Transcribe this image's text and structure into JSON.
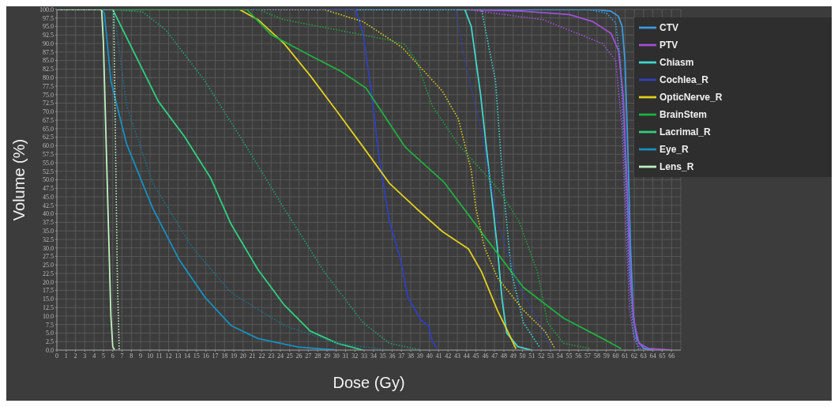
{
  "chart_data": {
    "type": "line",
    "xlabel": "Dose (Gy)",
    "ylabel": "Volume (%)",
    "xlim": [
      0,
      67
    ],
    "ylim": [
      0,
      100
    ],
    "xticks": [
      0,
      1,
      2,
      3,
      4,
      5,
      6,
      7,
      8,
      9,
      10,
      11,
      12,
      13,
      14,
      15,
      16,
      17,
      18,
      19,
      20,
      21,
      22,
      23,
      24,
      25,
      26,
      27,
      28,
      29,
      30,
      31,
      32,
      33,
      34,
      35,
      36,
      37,
      38,
      39,
      40,
      41,
      42,
      43,
      44,
      45,
      46,
      47,
      48,
      49,
      50,
      51,
      52,
      53,
      54,
      55,
      56,
      57,
      58,
      59,
      60,
      61,
      62,
      63,
      64,
      65,
      66
    ],
    "yticks": [
      {
        "value": 0,
        "label": "0.0"
      },
      2.5,
      {
        "value": 5,
        "label": "5.0"
      },
      7.5,
      {
        "value": 10,
        "label": "10.0"
      },
      12.5,
      {
        "value": 15,
        "label": "15.0"
      },
      17.5,
      {
        "value": 20,
        "label": "20.0"
      },
      22.5,
      {
        "value": 25,
        "label": "25.0"
      },
      27.5,
      {
        "value": 30,
        "label": "30.0"
      },
      32.5,
      {
        "value": 35,
        "label": "35.0"
      },
      37.5,
      {
        "value": 40,
        "label": "40.0"
      },
      42.5,
      {
        "value": 45,
        "label": "45.0"
      },
      47.5,
      {
        "value": 50,
        "label": "50.0"
      },
      52.5,
      {
        "value": 55,
        "label": "55.0"
      },
      57.5,
      {
        "value": 60,
        "label": "60.0"
      },
      62.5,
      {
        "value": 65,
        "label": "65.0"
      },
      67.5,
      {
        "value": 70,
        "label": "70.0"
      },
      72.5,
      {
        "value": 75,
        "label": "75.0"
      },
      77.5,
      {
        "value": 80,
        "label": "80.0"
      },
      82.5,
      {
        "value": 85,
        "label": "85.0"
      },
      87.5,
      {
        "value": 90,
        "label": "90.0"
      },
      92.5,
      {
        "value": 95,
        "label": "95.0"
      },
      97.5,
      {
        "value": 100,
        "label": "100.0"
      }
    ],
    "grid": true,
    "legend": "top right",
    "marker": "none",
    "series": [
      {
        "name": "CTV",
        "color": "#3b9be0",
        "x": [
          0,
          58,
          59.5,
          60.3,
          60.7,
          61,
          61.3,
          61.6,
          61.9,
          62.3,
          63,
          64
        ],
        "values": [
          100,
          100,
          99.5,
          98,
          95,
          85,
          60,
          30,
          10,
          3,
          0.5,
          0
        ]
      },
      {
        "name": "PTV",
        "color": "#a050d8",
        "x": [
          0,
          44,
          50,
          55,
          57.5,
          59.5,
          60.3,
          60.8,
          61.2,
          61.6,
          62,
          62.5,
          63.5,
          66
        ],
        "values": [
          100,
          100,
          99.5,
          98.5,
          96.5,
          93,
          88,
          75,
          50,
          20,
          8,
          2,
          0.5,
          0
        ]
      },
      {
        "name": "Chiasm",
        "color": "#40d8d0",
        "x": [
          0,
          43.8,
          44.5,
          45.5,
          46.5,
          47.3,
          47.8,
          48.3,
          49.5,
          51
        ],
        "values": [
          100,
          100,
          95,
          75,
          50,
          30,
          15,
          5,
          1,
          0
        ]
      },
      {
        "name": "Cochlea_R",
        "color": "#3040c0",
        "x": [
          0,
          32.1,
          32.9,
          33.8,
          34.6,
          35.7,
          36.9,
          37.7,
          39.1,
          39.9,
          40.3,
          40.8
        ],
        "values": [
          100,
          100,
          92.6,
          75,
          56.6,
          38,
          26.7,
          15.5,
          8.8,
          7.2,
          2.7,
          0.5
        ]
      },
      {
        "name": "OpticNerve_R",
        "color": "#e0d020",
        "x": [
          0,
          19.6,
          21.6,
          24.4,
          27.2,
          30.1,
          32.9,
          35.7,
          38.6,
          41.4,
          44.2,
          45.6,
          47.3,
          48.4,
          49.3
        ],
        "values": [
          100,
          100,
          97,
          90,
          80.6,
          70,
          59.6,
          49,
          41.6,
          34.8,
          29.7,
          23,
          11.7,
          5.6,
          0.4
        ]
      },
      {
        "name": "BrainStem",
        "color": "#20b040",
        "x": [
          0,
          20.4,
          23,
          27.2,
          30.4,
          33.2,
          37.4,
          41.6,
          45.9,
          50.1,
          54.4,
          58.6,
          60.6
        ],
        "values": [
          100,
          100,
          92.6,
          86.5,
          82,
          76.9,
          59.6,
          49.2,
          33.5,
          18.4,
          9.4,
          3.4,
          0.4
        ]
      },
      {
        "name": "Lacrimal_R",
        "color": "#30d080",
        "x": [
          0,
          6,
          8.9,
          10.9,
          13.7,
          16.5,
          18.7,
          21.6,
          24.4,
          27.2,
          30.1,
          32.9
        ],
        "values": [
          100,
          100,
          84,
          73,
          62.7,
          50.6,
          37,
          23.6,
          13.3,
          5.6,
          2,
          0
        ]
      },
      {
        "name": "Eye_R",
        "color": "#1890c0",
        "x": [
          0,
          4.7,
          5.1,
          5.8,
          7.5,
          10.3,
          13.1,
          15.9,
          18.7,
          21.6,
          25.9,
          30.1
        ],
        "values": [
          100,
          100,
          99,
          79,
          60.4,
          41.6,
          26.7,
          15.5,
          7.2,
          3.4,
          0.9,
          0
        ]
      },
      {
        "name": "Lens_R",
        "color": "#c0f0c0",
        "x": [
          0,
          4.8,
          5,
          5.4,
          5.8,
          6,
          6.2
        ],
        "values": [
          100,
          100,
          90,
          50,
          10,
          1,
          0
        ]
      },
      {
        "color": "#3b9be0",
        "line_style": "dotted",
        "x": [
          0,
          57,
          59,
          60,
          60.5,
          61,
          61.4,
          61.9,
          62.5
        ],
        "values": [
          100,
          100,
          99,
          96,
          85,
          55,
          25,
          5,
          0
        ]
      },
      {
        "color": "#a050d8",
        "line_style": "dotted",
        "x": [
          0,
          44,
          52.2,
          58.6,
          60,
          60.7,
          61.1,
          61.5,
          62,
          62.8
        ],
        "values": [
          100,
          100,
          97,
          90,
          85,
          65,
          35,
          12,
          3,
          0
        ]
      },
      {
        "color": "#40d8d0",
        "line_style": "dotted",
        "x": [
          0,
          45.6,
          47.1,
          47.9,
          48.8,
          50.1,
          51.8
        ],
        "values": [
          100,
          100,
          79,
          49,
          23,
          8,
          1
        ]
      },
      {
        "color": "#3040c0",
        "line_style": "dotted",
        "x": [
          0,
          42.8,
          43.7,
          45.6,
          47.3,
          49.6,
          51.8,
          53
        ],
        "values": [
          100,
          100,
          86.5,
          64,
          38,
          19,
          8,
          0.5
        ]
      },
      {
        "color": "#e0d020",
        "line_style": "dotted",
        "x": [
          0,
          28.7,
          32.9,
          37.1,
          41.4,
          43.1,
          44.5,
          45,
          45.9,
          47.3,
          50.1,
          52.4,
          53.5
        ],
        "values": [
          100,
          100,
          96.4,
          88.8,
          76,
          67.9,
          52.8,
          41.6,
          30.3,
          21.3,
          11.7,
          5.6,
          0.4
        ]
      },
      {
        "color": "#20a040",
        "line_style": "dotted",
        "x": [
          0,
          21.6,
          24.4,
          30.1,
          35.7,
          37.4,
          38.6,
          40.3,
          43.1,
          47.3,
          49.6,
          51.6,
          52.7,
          54.4,
          57.3
        ],
        "values": [
          100,
          100,
          97,
          94,
          91,
          89.7,
          85,
          71.7,
          60.4,
          47.6,
          38,
          23,
          8,
          2,
          0.4
        ]
      },
      {
        "color": "#20a070",
        "line_style": "dotted",
        "x": [
          0,
          6,
          9.2,
          11.7,
          15.9,
          20.2,
          24.4,
          28.7,
          32.9,
          35.7,
          39.1
        ],
        "values": [
          100,
          100,
          99.3,
          94,
          79,
          60.4,
          41.6,
          23,
          8,
          2,
          0
        ]
      },
      {
        "color": "#1a7090",
        "line_style": "dotted",
        "x": [
          0,
          6,
          6.4,
          7.5,
          10.3,
          14.5,
          18.7,
          24.4,
          30.1,
          35.7
        ],
        "values": [
          100,
          100,
          94,
          71.7,
          49,
          30.3,
          16.9,
          7.2,
          2,
          0
        ]
      },
      {
        "color": "#c0f0c0",
        "line_style": "dotted",
        "x": [
          0,
          6.1,
          6.3,
          6.5,
          6.7
        ],
        "values": [
          100,
          100,
          60,
          20,
          0
        ]
      }
    ]
  }
}
